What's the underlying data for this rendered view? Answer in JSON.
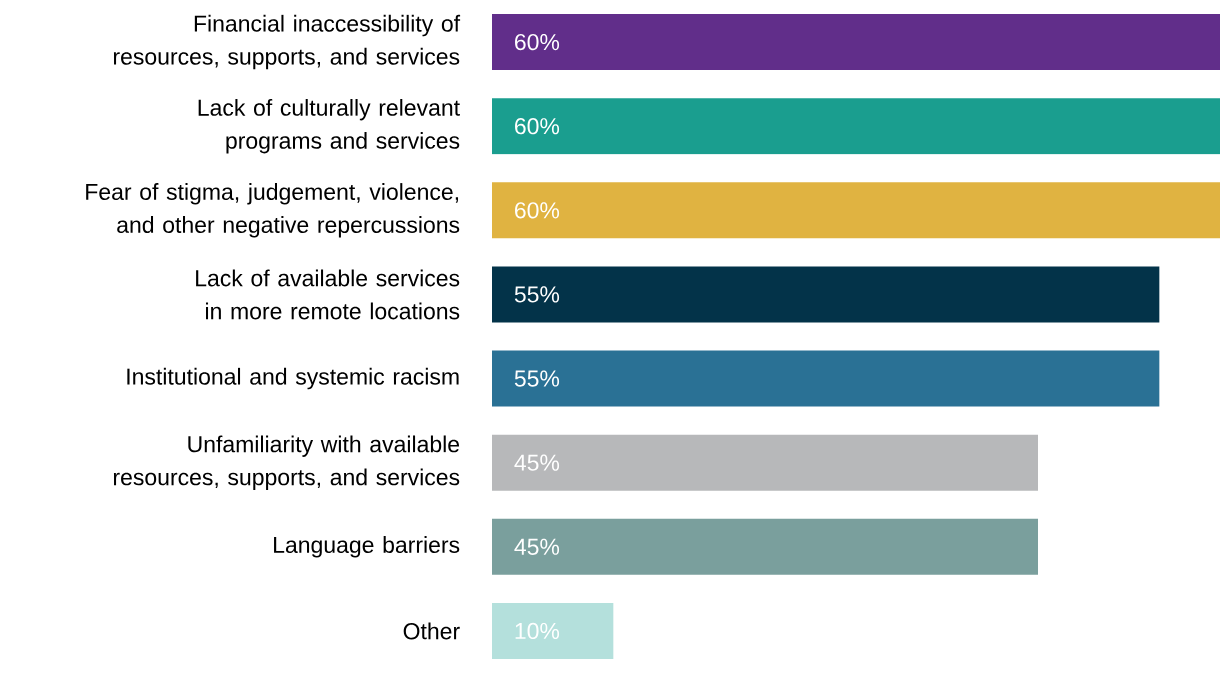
{
  "chart_data": {
    "type": "bar",
    "orientation": "horizontal",
    "categories": [
      "Financial inaccessibility of resources, supports, and services",
      "Lack of culturally relevant programs and services",
      "Fear of stigma, judgement, violence, and other negative repercussions",
      "Lack of available services in more remote locations",
      "Institutional and systemic racism",
      "Unfamiliarity with available resources, supports, and services",
      "Language barriers",
      "Other"
    ],
    "values": [
      60,
      60,
      60,
      55,
      55,
      45,
      45,
      10
    ],
    "value_labels": [
      "60%",
      "60%",
      "60%",
      "55%",
      "55%",
      "45%",
      "45%",
      "10%"
    ],
    "colors": [
      "#612e8a",
      "#1a9e8f",
      "#e0b341",
      "#033349",
      "#2a7195",
      "#b7b8ba",
      "#7a9f9d",
      "#b4e0dc"
    ]
  }
}
